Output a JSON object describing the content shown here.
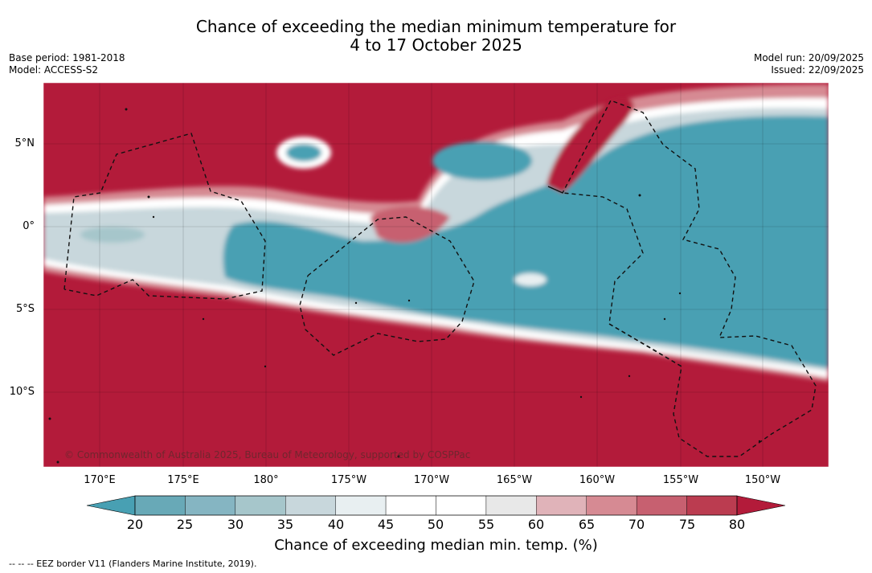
{
  "title_line1": "Chance of exceeding the median minimum temperature for",
  "title_line2": "4 to 17 October 2025",
  "base_period": "Base period: 1981-2018",
  "model": "Model: ACCESS-S2",
  "model_run": "Model run: 20/09/2025",
  "issued": "Issued: 22/09/2025",
  "lat_labels": [
    "5°N",
    "0°",
    "5°S",
    "10°S"
  ],
  "lon_labels": [
    "170°E",
    "175°E",
    "180°",
    "175°W",
    "170°W",
    "165°W",
    "160°W",
    "155°W",
    "150°W"
  ],
  "copyright": "© Commonwealth of Australia 2025, Bureau of Meteorology, supported by COSPPac",
  "colorbar": {
    "ticks": [
      "20",
      "25",
      "30",
      "35",
      "40",
      "45",
      "50",
      "55",
      "60",
      "65",
      "70",
      "75",
      "80"
    ],
    "colors": [
      "#68a9b7",
      "#85b5c2",
      "#a6c6cb",
      "#c8d7dc",
      "#e8eff1",
      "#ffffff",
      "#ffffff",
      "#e8e8e8",
      "#e0b3b9",
      "#d68a93",
      "#c76070",
      "#bb3c50"
    ],
    "low_color": "#48a0b3",
    "high_color": "#b31b3a",
    "label": "Chance of exceeding median min. temp. (%)"
  },
  "eez_legend": "--  --  -- EEZ border V11 (Flanders Marine Institute, 2019)."
}
